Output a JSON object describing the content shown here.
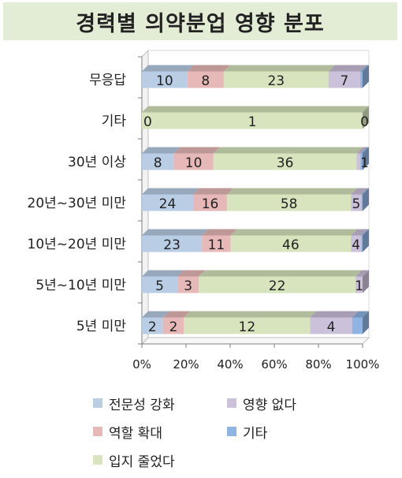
{
  "title": "경력별 의약분업 영향 분포",
  "colors": {
    "전문성 강화": "#b9cde5",
    "역할 확대": "#e6b9b8",
    "입지 줄었다": "#d7e4bd",
    "영향 없다": "#ccc1da",
    "기타": "#8eb4e3"
  },
  "chart_data": {
    "type": "bar",
    "orientation": "horizontal",
    "stacked": "percent",
    "categories": [
      "무응답",
      "기타",
      "30년 이상",
      "20년~30년 미만",
      "10년~20년 미만",
      "5년~10년 미만",
      "5년 미만"
    ],
    "series": [
      {
        "name": "전문성 강화",
        "values": [
          10,
          0,
          8,
          24,
          23,
          5,
          2
        ],
        "labels": [
          "10",
          "0",
          "8",
          "24",
          "23",
          "5",
          "2"
        ]
      },
      {
        "name": "역할 확대",
        "values": [
          8,
          0,
          10,
          16,
          11,
          3,
          2
        ],
        "labels": [
          "8",
          "",
          "10",
          "16",
          "11",
          "3",
          "2"
        ]
      },
      {
        "name": "입지 줄었다",
        "values": [
          23,
          1,
          36,
          58,
          46,
          22,
          12
        ],
        "labels": [
          "23",
          "1",
          "36",
          "58",
          "46",
          "22",
          "12"
        ]
      },
      {
        "name": "영향 없다",
        "values": [
          7,
          0,
          1,
          5,
          4,
          1,
          4
        ],
        "labels": [
          "7",
          "0",
          "1",
          "5",
          "4",
          "1",
          "4"
        ]
      },
      {
        "name": "기타",
        "values": [
          0.5,
          0,
          0.5,
          0.5,
          0.5,
          0,
          1
        ],
        "labels": [
          "",
          "",
          "",
          "",
          "",
          "",
          ""
        ]
      }
    ],
    "x_ticks": [
      "0%",
      "20%",
      "40%",
      "60%",
      "80%",
      "100%"
    ],
    "xlim": [
      0,
      100
    ],
    "grid": false,
    "legend_position": "bottom"
  },
  "legend": [
    {
      "label": "전문성 강화",
      "color": "#b9cde5"
    },
    {
      "label": "영향 없다",
      "color": "#ccc1da"
    },
    {
      "label": "역할 확대",
      "color": "#e6b9b8"
    },
    {
      "label": "기타",
      "color": "#8eb4e3"
    },
    {
      "label": "입지 줄었다",
      "color": "#d7e4bd"
    }
  ]
}
